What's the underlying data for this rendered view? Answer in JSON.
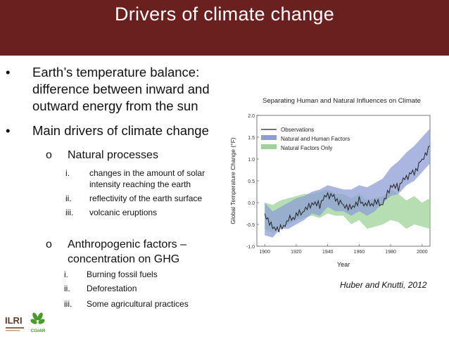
{
  "slide": {
    "title": "Drivers of climate change",
    "bullets": [
      {
        "marker": "•",
        "lines": [
          "Earth’s temperature balance:",
          "difference between inward and",
          "outward energy from the sun"
        ]
      },
      {
        "marker": "•",
        "lines": [
          "Main drivers of climate change"
        ]
      }
    ],
    "natural": {
      "marker": "o",
      "label": "Natural processes",
      "items": [
        {
          "num": "i.",
          "lines": [
            "changes in the amount of solar",
            "intensity reaching the earth"
          ]
        },
        {
          "num": "ii.",
          "lines": [
            "reflectivity of the earth surface"
          ]
        },
        {
          "num": "iii.",
          "lines": [
            "volcanic eruptions"
          ]
        }
      ]
    },
    "anthropogenic": {
      "marker": "o",
      "lines": [
        "Anthropogenic factors –",
        "concentration on GHG"
      ],
      "items": [
        {
          "num": "i.",
          "text": "Burning fossil fuels"
        },
        {
          "num": "ii.",
          "text": "Deforestation"
        },
        {
          "num": "iii.",
          "text": "Some agricultural practices"
        }
      ]
    },
    "citation": "Huber and Knutti, 2012",
    "logos": {
      "ilri": "ILRI",
      "cgiar": "CGIAR"
    }
  },
  "chart_data": {
    "type": "line",
    "title": "Separating Human and Natural Influences on Climate",
    "xlabel": "Year",
    "ylabel": "Global Temperature Change (°F)",
    "xlim": [
      1895,
      2005
    ],
    "ylim": [
      -1.0,
      2.0
    ],
    "xticks": [
      "1900",
      "1920",
      "1940",
      "1960",
      "1980",
      "2000"
    ],
    "yticks": [
      "2.0",
      "1.5",
      "1.0",
      "0.5",
      "0.0",
      "-0.5",
      "-1.0"
    ],
    "legend": [
      "Observations",
      "Natural and Human Factors",
      "Natural Factors Only"
    ],
    "colors": {
      "observations": "#222222",
      "natural_human": "#8e9dd6",
      "natural_only": "#9fd39a"
    },
    "x": [
      1900,
      1905,
      1910,
      1915,
      1920,
      1925,
      1930,
      1935,
      1940,
      1945,
      1950,
      1955,
      1960,
      1965,
      1970,
      1975,
      1980,
      1985,
      1990,
      1995,
      2000,
      2005
    ],
    "observations": [
      -0.25,
      -0.55,
      -0.6,
      -0.4,
      -0.3,
      -0.2,
      -0.05,
      -0.05,
      0.2,
      0.1,
      -0.05,
      -0.1,
      0.05,
      -0.05,
      0.0,
      -0.05,
      0.35,
      0.35,
      0.6,
      0.7,
      1.0,
      1.3
    ],
    "natural_human": {
      "low": [
        -0.75,
        -0.8,
        -0.6,
        -0.6,
        -0.5,
        -0.4,
        -0.25,
        -0.3,
        -0.1,
        -0.2,
        -0.2,
        -0.3,
        -0.2,
        -0.3,
        -0.2,
        0.0,
        0.15,
        0.2,
        0.4,
        0.5,
        0.7,
        0.9
      ],
      "high": [
        0.0,
        -0.2,
        -0.1,
        0.0,
        0.1,
        0.15,
        0.25,
        0.3,
        0.4,
        0.35,
        0.3,
        0.3,
        0.4,
        0.35,
        0.45,
        0.55,
        0.8,
        0.95,
        1.15,
        1.3,
        1.5,
        1.7
      ]
    },
    "natural_only": {
      "low": [
        -0.6,
        -0.7,
        -0.55,
        -0.5,
        -0.4,
        -0.35,
        -0.3,
        -0.35,
        -0.25,
        -0.3,
        -0.3,
        -0.5,
        -0.4,
        -0.6,
        -0.55,
        -0.5,
        -0.4,
        -0.45,
        -0.6,
        -0.5,
        -0.55,
        -0.6
      ],
      "high": [
        0.0,
        -0.05,
        0.05,
        0.1,
        0.15,
        0.2,
        0.2,
        0.25,
        0.3,
        0.2,
        0.2,
        0.1,
        0.2,
        0.05,
        0.1,
        0.15,
        0.3,
        0.2,
        0.05,
        0.15,
        0.0,
        0.1
      ]
    }
  }
}
